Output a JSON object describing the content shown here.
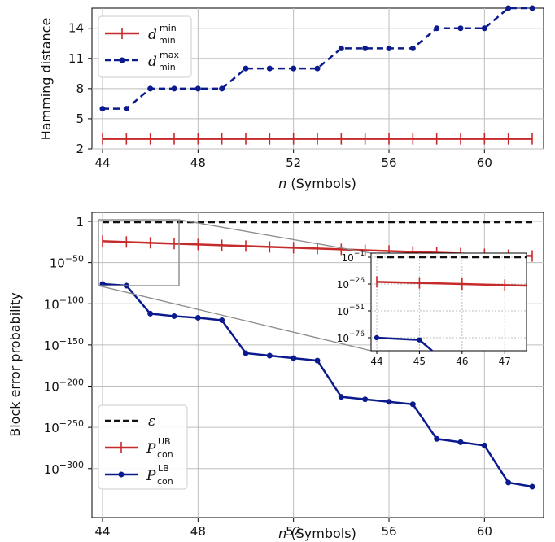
{
  "chart_data": [
    {
      "type": "line",
      "ylabel": "Hamming distance",
      "xlabel_var": "n",
      "xlabel_unit": "(Symbols)",
      "xlim": [
        44,
        62
      ],
      "ylim": [
        2,
        16
      ],
      "xticks": [
        "44",
        "48",
        "52",
        "56",
        "60"
      ],
      "yticks": [
        "2",
        "5",
        "8",
        "11",
        "14"
      ],
      "grid": true,
      "legend_placement": "top-left",
      "x": [
        44,
        45,
        46,
        47,
        48,
        49,
        50,
        51,
        52,
        53,
        54,
        55,
        56,
        57,
        58,
        59,
        60,
        61,
        62
      ],
      "series": [
        {
          "name": "d_min^min",
          "label_base": "d",
          "label_sup": "min",
          "label_sub": "min",
          "color": "#c62a2a",
          "marker": "plus",
          "linestyle": "solid",
          "values": [
            3,
            3,
            3,
            3,
            3,
            3,
            3,
            3,
            3,
            3,
            3,
            3,
            3,
            3,
            3,
            3,
            3,
            3,
            3
          ]
        },
        {
          "name": "d_min^max",
          "label_base": "d",
          "label_sup": "max",
          "label_sub": "min",
          "color": "#0b1a8c",
          "marker": "dot",
          "linestyle": "dashed",
          "values": [
            6,
            6,
            8,
            8,
            8,
            8,
            10,
            10,
            10,
            10,
            12,
            12,
            12,
            12,
            14,
            14,
            14,
            16,
            16
          ]
        }
      ]
    },
    {
      "type": "line",
      "ylabel": "Block error probability",
      "xlabel_var": "n",
      "xlabel_unit": "(Symbols)",
      "xlim": [
        44,
        62
      ],
      "ylog_exp_range": [
        -320,
        0
      ],
      "xticks": [
        "44",
        "48",
        "52",
        "56",
        "60"
      ],
      "yticks": [
        {
          "label": "1",
          "exp": 0
        },
        {
          "label": "10",
          "sup": "−50",
          "exp": -50
        },
        {
          "label": "10",
          "sup": "−100",
          "exp": -100
        },
        {
          "label": "10",
          "sup": "−150",
          "exp": -150
        },
        {
          "label": "10",
          "sup": "−200",
          "exp": -200
        },
        {
          "label": "10",
          "sup": "−250",
          "exp": -250
        },
        {
          "label": "10",
          "sup": "−300",
          "exp": -300
        }
      ],
      "grid": true,
      "legend_placement": "bottom-left",
      "x": [
        44,
        45,
        46,
        47,
        48,
        49,
        50,
        51,
        52,
        53,
        54,
        55,
        56,
        57,
        58,
        59,
        60,
        61,
        62
      ],
      "series": [
        {
          "name": "ε",
          "label_base": "ε",
          "color": "#111111",
          "marker": "none",
          "linestyle": "dashed",
          "log10_values": [
            -1,
            -1,
            -1,
            -1,
            -1,
            -1,
            -1,
            -1,
            -1,
            -1,
            -1,
            -1,
            -1,
            -1,
            -1,
            -1,
            -1,
            -1,
            -1
          ]
        },
        {
          "name": "P_con^UB",
          "label_base": "P",
          "label_sup": "UB",
          "label_sub": "con",
          "color": "#c62a2a",
          "marker": "plus",
          "linestyle": "solid",
          "log10_values": [
            -24,
            -25,
            -26,
            -27,
            -28,
            -29,
            -30,
            -31,
            -32,
            -33,
            -34,
            -35,
            -36,
            -37,
            -38,
            -39,
            -40,
            -41,
            -42
          ]
        },
        {
          "name": "P_con^LB",
          "label_base": "P",
          "label_sup": "LB",
          "label_sub": "con",
          "color": "#0b1a8c",
          "marker": "dot",
          "linestyle": "solid",
          "log10_values": [
            -76,
            -78,
            -112,
            -115,
            -117,
            -120,
            -160,
            -163,
            -166,
            -169,
            -213,
            -216,
            -219,
            -222,
            -264,
            -268,
            -272,
            -317,
            -322
          ]
        }
      ],
      "inset": {
        "xlim": [
          44,
          47.3
        ],
        "ylim_exp": [
          -76,
          -1
        ],
        "xticks": [
          "44",
          "45",
          "46",
          "47"
        ],
        "yticks": [
          {
            "label": "10",
            "sup": "−1",
            "exp": -1
          },
          {
            "label": "10",
            "sup": "−26",
            "exp": -26
          },
          {
            "label": "10",
            "sup": "−51",
            "exp": -51
          },
          {
            "label": "10",
            "sup": "−76",
            "exp": -76
          }
        ],
        "grid": "dotted"
      }
    }
  ]
}
